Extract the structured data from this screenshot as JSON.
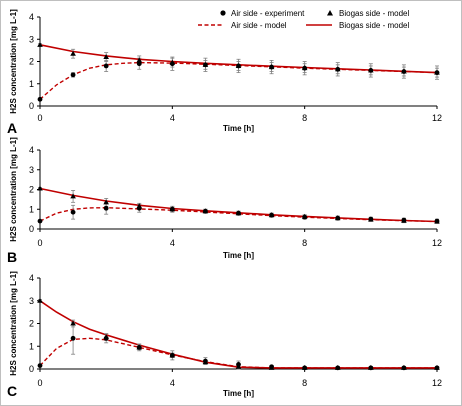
{
  "legend": {
    "air_experiment": "Air side - experiment",
    "biogas_model_marker": "Biogas side - model",
    "air_model": "Air side - model",
    "biogas_model": "Biogas side - model"
  },
  "colors": {
    "model": "#c00000",
    "marker": "#000000",
    "error": "#7f7f7f"
  },
  "chart_data": [
    {
      "type": "line",
      "label": "A",
      "xlabel": "Time [h]",
      "ylabel": "H2S concentration [mg L-1]",
      "xlim": [
        0,
        12
      ],
      "ylim": [
        0,
        4
      ],
      "xticks": [
        0,
        4,
        8,
        12
      ],
      "yticks": [
        0,
        1,
        2,
        3,
        4
      ],
      "air_experiment": {
        "x": [
          0,
          1,
          2,
          3,
          4,
          5,
          6,
          7,
          8,
          9,
          10,
          11,
          12
        ],
        "y": [
          0.3,
          1.4,
          1.8,
          1.9,
          1.9,
          1.85,
          1.8,
          1.75,
          1.7,
          1.65,
          1.6,
          1.55,
          1.5
        ],
        "err": [
          0.05,
          0.1,
          0.25,
          0.25,
          0.3,
          0.3,
          0.3,
          0.3,
          0.3,
          0.3,
          0.3,
          0.3,
          0.3
        ]
      },
      "biogas_marker": {
        "x": [
          0,
          1,
          2,
          3,
          4,
          5,
          6,
          7,
          8,
          9,
          10,
          11,
          12
        ],
        "y": [
          2.75,
          2.35,
          2.2,
          2.05,
          1.95,
          1.85,
          1.8,
          1.75,
          1.7,
          1.65,
          1.6,
          1.55,
          1.5
        ],
        "err": [
          0.05,
          0.2,
          0.2,
          0.2,
          0.2,
          0.2,
          0.2,
          0.2,
          0.2,
          0.2,
          0.2,
          0.2,
          0.2
        ]
      },
      "air_model": {
        "x": [
          0,
          0.5,
          1,
          1.5,
          2,
          2.5,
          3,
          4,
          5,
          6,
          7,
          8,
          9,
          10,
          11,
          12
        ],
        "y": [
          0.3,
          0.95,
          1.4,
          1.7,
          1.85,
          1.92,
          1.95,
          1.93,
          1.88,
          1.82,
          1.76,
          1.7,
          1.65,
          1.6,
          1.55,
          1.5
        ]
      },
      "biogas_model": {
        "x": [
          0,
          1,
          2,
          3,
          4,
          5,
          6,
          7,
          8,
          9,
          10,
          11,
          12
        ],
        "y": [
          2.75,
          2.45,
          2.25,
          2.1,
          2.0,
          1.92,
          1.85,
          1.79,
          1.73,
          1.67,
          1.62,
          1.56,
          1.5
        ]
      }
    },
    {
      "type": "line",
      "label": "B",
      "xlabel": "Time [h]",
      "ylabel": "H2S concentration [mg L-1]",
      "xlim": [
        0,
        12
      ],
      "ylim": [
        0,
        4
      ],
      "xticks": [
        0,
        4,
        8,
        12
      ],
      "yticks": [
        0,
        1,
        2,
        3,
        4
      ],
      "air_experiment": {
        "x": [
          0,
          1,
          2,
          3,
          4,
          5,
          6,
          7,
          8,
          9,
          10,
          11,
          12
        ],
        "y": [
          0.4,
          0.85,
          1.05,
          1.05,
          1.0,
          0.9,
          0.8,
          0.7,
          0.6,
          0.55,
          0.5,
          0.45,
          0.4
        ],
        "err": [
          0.05,
          0.35,
          0.3,
          0.2,
          0.15,
          0.1,
          0.1,
          0.1,
          0.1,
          0.1,
          0.1,
          0.1,
          0.1
        ]
      },
      "biogas_marker": {
        "x": [
          0,
          1,
          2,
          3,
          4,
          5,
          6,
          7,
          8,
          9,
          10,
          11,
          12
        ],
        "y": [
          2.05,
          1.65,
          1.35,
          1.15,
          1.0,
          0.9,
          0.8,
          0.7,
          0.62,
          0.55,
          0.48,
          0.42,
          0.38
        ],
        "err": [
          0.05,
          0.3,
          0.2,
          0.15,
          0.1,
          0.1,
          0.1,
          0.1,
          0.1,
          0.1,
          0.1,
          0.1,
          0.1
        ]
      },
      "air_model": {
        "x": [
          0,
          0.5,
          1,
          1.5,
          2,
          3,
          4,
          5,
          6,
          7,
          8,
          9,
          10,
          11,
          12
        ],
        "y": [
          0.4,
          0.8,
          1.0,
          1.07,
          1.08,
          1.02,
          0.95,
          0.86,
          0.77,
          0.68,
          0.6,
          0.53,
          0.47,
          0.42,
          0.38
        ]
      },
      "biogas_model": {
        "x": [
          0,
          1,
          2,
          3,
          4,
          5,
          6,
          7,
          8,
          9,
          10,
          11,
          12
        ],
        "y": [
          2.05,
          1.7,
          1.42,
          1.2,
          1.04,
          0.92,
          0.82,
          0.72,
          0.64,
          0.56,
          0.49,
          0.43,
          0.38
        ]
      }
    },
    {
      "type": "line",
      "label": "C",
      "xlabel": "Time [h]",
      "ylabel": "H2S concentration [mg L-1]",
      "xlim": [
        0,
        12
      ],
      "ylim": [
        0,
        4
      ],
      "xticks": [
        0,
        4,
        8,
        12
      ],
      "yticks": [
        0,
        1,
        2,
        3,
        4
      ],
      "air_experiment": {
        "x": [
          0,
          1,
          2,
          3,
          4,
          5,
          6,
          7,
          8,
          9,
          10,
          11,
          12
        ],
        "y": [
          0.15,
          1.35,
          1.35,
          0.95,
          0.6,
          0.35,
          0.2,
          0.1,
          0.05,
          0.05,
          0.05,
          0.05,
          0.05
        ],
        "err": [
          0.05,
          0.7,
          0.2,
          0.15,
          0.2,
          0.15,
          0.15,
          0.05,
          0.02,
          0.02,
          0.02,
          0.02,
          0.02
        ]
      },
      "biogas_marker": {
        "x": [
          0,
          1,
          2,
          3,
          4,
          5,
          6,
          7,
          8,
          9,
          10,
          11,
          12
        ],
        "y": [
          3.0,
          2.0,
          1.4,
          0.95,
          0.6,
          0.3,
          0.1,
          0.05,
          0.05,
          0.05,
          0.05,
          0.05,
          0.05
        ],
        "err": [
          0.05,
          0.15,
          0.15,
          0.1,
          0.1,
          0.1,
          0.1,
          0.05,
          0.02,
          0.02,
          0.02,
          0.02,
          0.02
        ]
      },
      "air_model": {
        "x": [
          0,
          0.5,
          1,
          1.5,
          2,
          3,
          4,
          5,
          6,
          7,
          8,
          9,
          10,
          11,
          12
        ],
        "y": [
          0.15,
          0.9,
          1.3,
          1.35,
          1.28,
          0.95,
          0.62,
          0.32,
          0.1,
          0.05,
          0.05,
          0.05,
          0.05,
          0.05,
          0.05
        ]
      },
      "biogas_model": {
        "x": [
          0,
          0.5,
          1,
          1.5,
          2,
          3,
          4,
          5,
          6,
          7,
          8,
          9,
          10,
          11,
          12
        ],
        "y": [
          3.0,
          2.5,
          2.08,
          1.75,
          1.5,
          1.05,
          0.65,
          0.3,
          0.08,
          0.05,
          0.05,
          0.05,
          0.05,
          0.05,
          0.05
        ]
      }
    }
  ]
}
